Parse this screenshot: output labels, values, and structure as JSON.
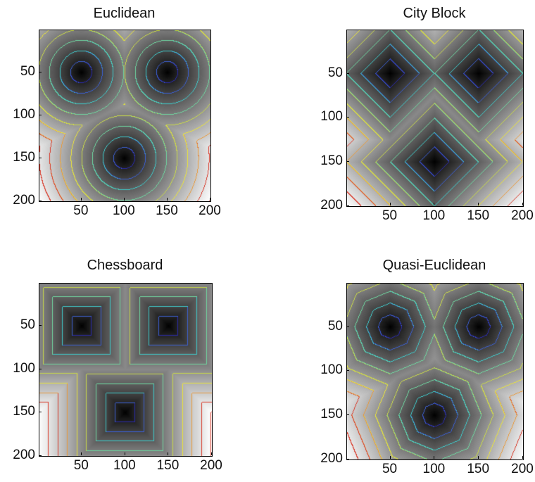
{
  "chart_data": [
    {
      "type": "heatmap",
      "title": "Euclidean",
      "metric": "euclidean",
      "seed_points": [
        [
          50,
          50
        ],
        [
          150,
          50
        ],
        [
          100,
          150
        ]
      ],
      "xlim": [
        1,
        200
      ],
      "ylim": [
        1,
        200
      ],
      "y_direction": "reversed",
      "xticks": [
        "50",
        "100",
        "150",
        "200"
      ],
      "yticks": [
        "50",
        "100",
        "150",
        "200"
      ],
      "colormap": "gray",
      "contour_colors": [
        "#2a2aa8",
        "#3c5fd0",
        "#3fc9c9",
        "#6fd6a0",
        "#c8d84a",
        "#e8e23c",
        "#e89a3c",
        "#d83a2a"
      ]
    },
    {
      "type": "heatmap",
      "title": "City Block",
      "metric": "cityblock",
      "seed_points": [
        [
          50,
          50
        ],
        [
          150,
          50
        ],
        [
          100,
          150
        ]
      ],
      "xlim": [
        1,
        200
      ],
      "ylim": [
        1,
        200
      ],
      "y_direction": "reversed",
      "xticks": [
        "50",
        "100",
        "150",
        "200"
      ],
      "yticks": [
        "50",
        "100",
        "150",
        "200"
      ],
      "colormap": "gray",
      "contour_colors": [
        "#2a2aa8",
        "#3c5fd0",
        "#3fc9c9",
        "#6fd6a0",
        "#c8d84a",
        "#e8e23c",
        "#e89a3c",
        "#d83a2a"
      ]
    },
    {
      "type": "heatmap",
      "title": "Chessboard",
      "metric": "chessboard",
      "seed_points": [
        [
          50,
          50
        ],
        [
          150,
          50
        ],
        [
          100,
          150
        ]
      ],
      "xlim": [
        1,
        200
      ],
      "ylim": [
        1,
        200
      ],
      "y_direction": "reversed",
      "xticks": [
        "50",
        "100",
        "150",
        "200"
      ],
      "yticks": [
        "50",
        "100",
        "150",
        "200"
      ],
      "colormap": "gray",
      "contour_colors": [
        "#2a2aa8",
        "#3c5fd0",
        "#3fc9c9",
        "#6fd6a0",
        "#c8d84a",
        "#e8e23c",
        "#e89a3c",
        "#d83a2a"
      ]
    },
    {
      "type": "heatmap",
      "title": "Quasi-Euclidean",
      "metric": "quasi-euclidean",
      "seed_points": [
        [
          50,
          50
        ],
        [
          150,
          50
        ],
        [
          100,
          150
        ]
      ],
      "xlim": [
        1,
        200
      ],
      "ylim": [
        1,
        200
      ],
      "y_direction": "reversed",
      "xticks": [
        "50",
        "100",
        "150",
        "200"
      ],
      "yticks": [
        "50",
        "100",
        "150",
        "200"
      ],
      "colormap": "gray",
      "contour_colors": [
        "#2a2aa8",
        "#3c5fd0",
        "#3fc9c9",
        "#6fd6a0",
        "#c8d84a",
        "#e8e23c",
        "#e89a3c",
        "#d83a2a"
      ]
    }
  ]
}
